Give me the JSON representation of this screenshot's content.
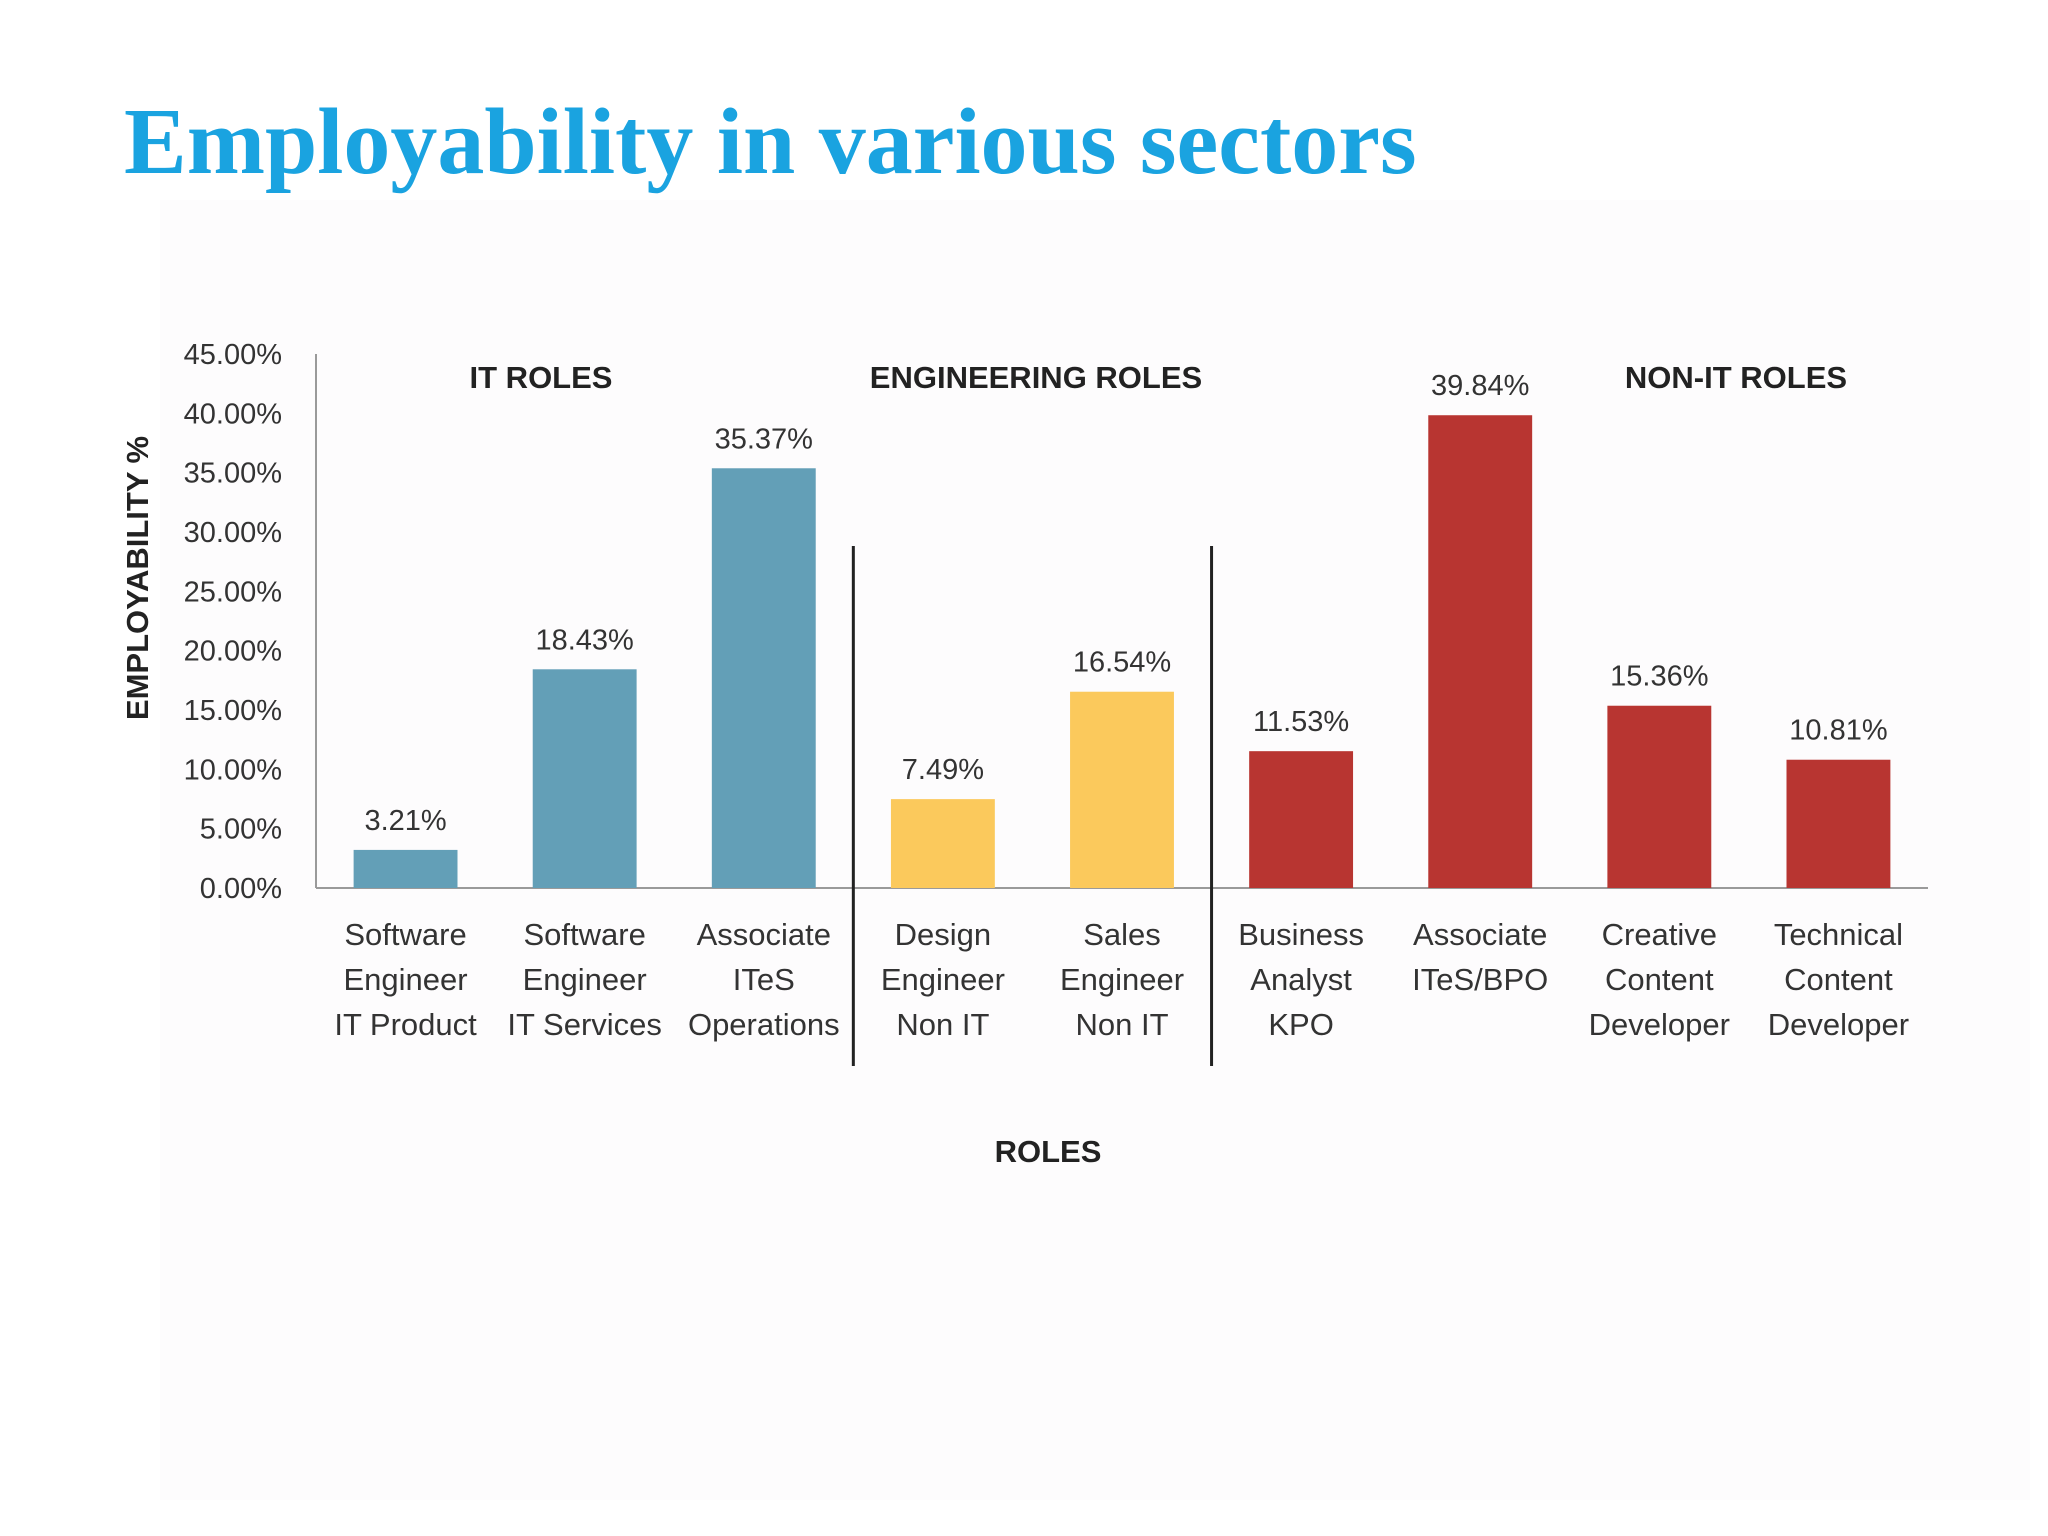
{
  "slide": {
    "title": "Employability in various sectors"
  },
  "chart_data": {
    "type": "bar",
    "title": "",
    "xlabel": "ROLES",
    "ylabel": "EMPLOYABILITY %",
    "ylim": [
      0,
      45
    ],
    "yticks": [
      "0.00%",
      "5.00%",
      "10.00%",
      "15.00%",
      "20.00%",
      "25.00%",
      "30.00%",
      "35.00%",
      "40.00%",
      "45.00%"
    ],
    "grid": false,
    "groups": [
      {
        "label": "IT ROLES",
        "color": "#639fb7",
        "categories": [
          [
            "Software",
            "Engineer",
            "IT Product"
          ],
          [
            "Software",
            "Engineer",
            "IT Services"
          ],
          [
            "Associate",
            "ITeS",
            "Operations"
          ]
        ],
        "values": [
          3.21,
          18.43,
          35.37
        ],
        "labels": [
          "3.21%",
          "18.43%",
          "35.37%"
        ]
      },
      {
        "label": "ENGINEERING ROLES",
        "color": "#fbc95c",
        "categories": [
          [
            "Design",
            "Engineer",
            "Non IT"
          ],
          [
            "Sales",
            "Engineer",
            "Non IT"
          ]
        ],
        "values": [
          7.49,
          16.54
        ],
        "labels": [
          "7.49%",
          "16.54%"
        ]
      },
      {
        "label": "NON-IT ROLES",
        "color": "#b83531",
        "categories": [
          [
            "Business",
            "Analyst",
            "KPO"
          ],
          [
            "Associate",
            "ITeS/BPO"
          ],
          [
            "Creative",
            "Content",
            "Developer"
          ],
          [
            "Technical",
            "Content",
            "Developer"
          ]
        ],
        "values": [
          11.53,
          39.84,
          15.36,
          10.81
        ],
        "labels": [
          "11.53%",
          "39.84%",
          "15.36%",
          "10.81%"
        ]
      }
    ]
  }
}
